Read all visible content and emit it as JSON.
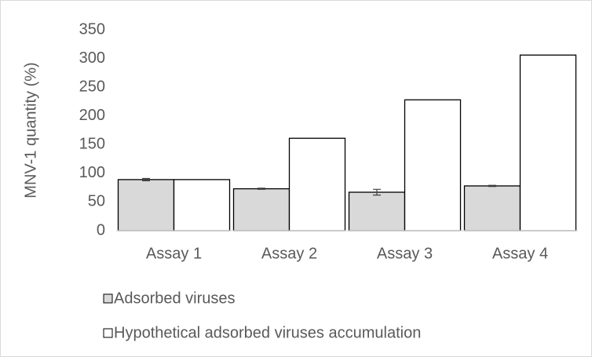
{
  "chart_data": {
    "type": "bar",
    "ylabel": "MNV-1 quantity (%)",
    "categories": [
      "Assay 1",
      "Assay 2",
      "Assay 3",
      "Assay 4"
    ],
    "series": [
      {
        "name": "Adsorbed viruses",
        "color": "#d9d9d9",
        "values": [
          89,
          73,
          67,
          78
        ],
        "errors": [
          2,
          1,
          5,
          1
        ]
      },
      {
        "name": "Hypothetical adsorbed viruses accumulation",
        "color": "#ffffff",
        "values": [
          89,
          161,
          228,
          306
        ]
      }
    ],
    "ylim": [
      0,
      350
    ],
    "yticks": [
      0,
      50,
      100,
      150,
      200,
      250,
      300,
      350
    ],
    "grid": false
  }
}
